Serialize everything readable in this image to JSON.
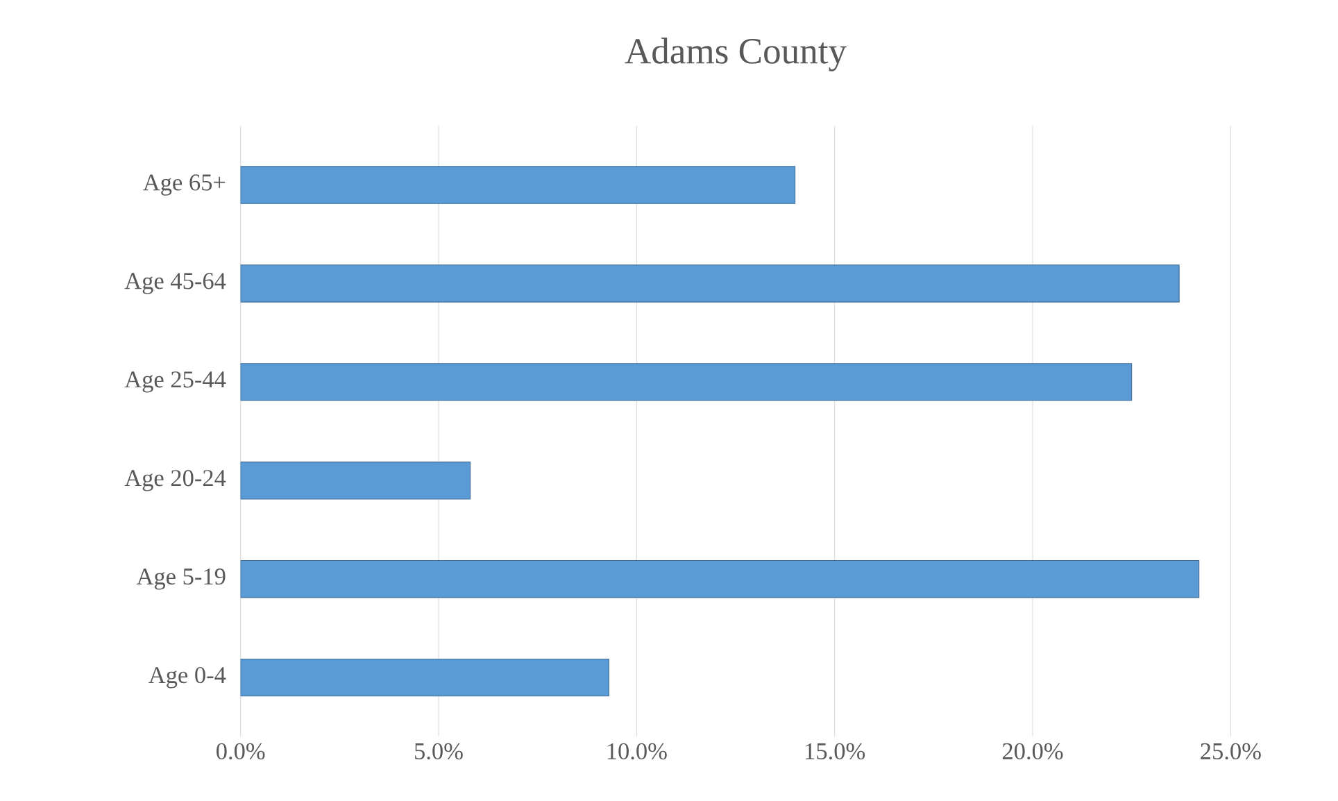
{
  "chart_data": {
    "type": "bar",
    "orientation": "horizontal",
    "title": "Adams County",
    "categories": [
      "Age 65+",
      "Age 45-64",
      "Age 25-44",
      "Age 20-24",
      "Age 5-19",
      "Age 0-4"
    ],
    "values": [
      14.0,
      23.7,
      22.5,
      5.8,
      24.2,
      9.3
    ],
    "color": "#5b9bd5",
    "xlim": [
      0,
      25
    ],
    "xticks": [
      {
        "value": 0,
        "label": "0.0%"
      },
      {
        "value": 5,
        "label": "5.0%"
      },
      {
        "value": 10,
        "label": "10.0%"
      },
      {
        "value": 15,
        "label": "15.0%"
      },
      {
        "value": 20,
        "label": "20.0%"
      },
      {
        "value": 25,
        "label": "25.0%"
      }
    ],
    "grid": "x"
  }
}
